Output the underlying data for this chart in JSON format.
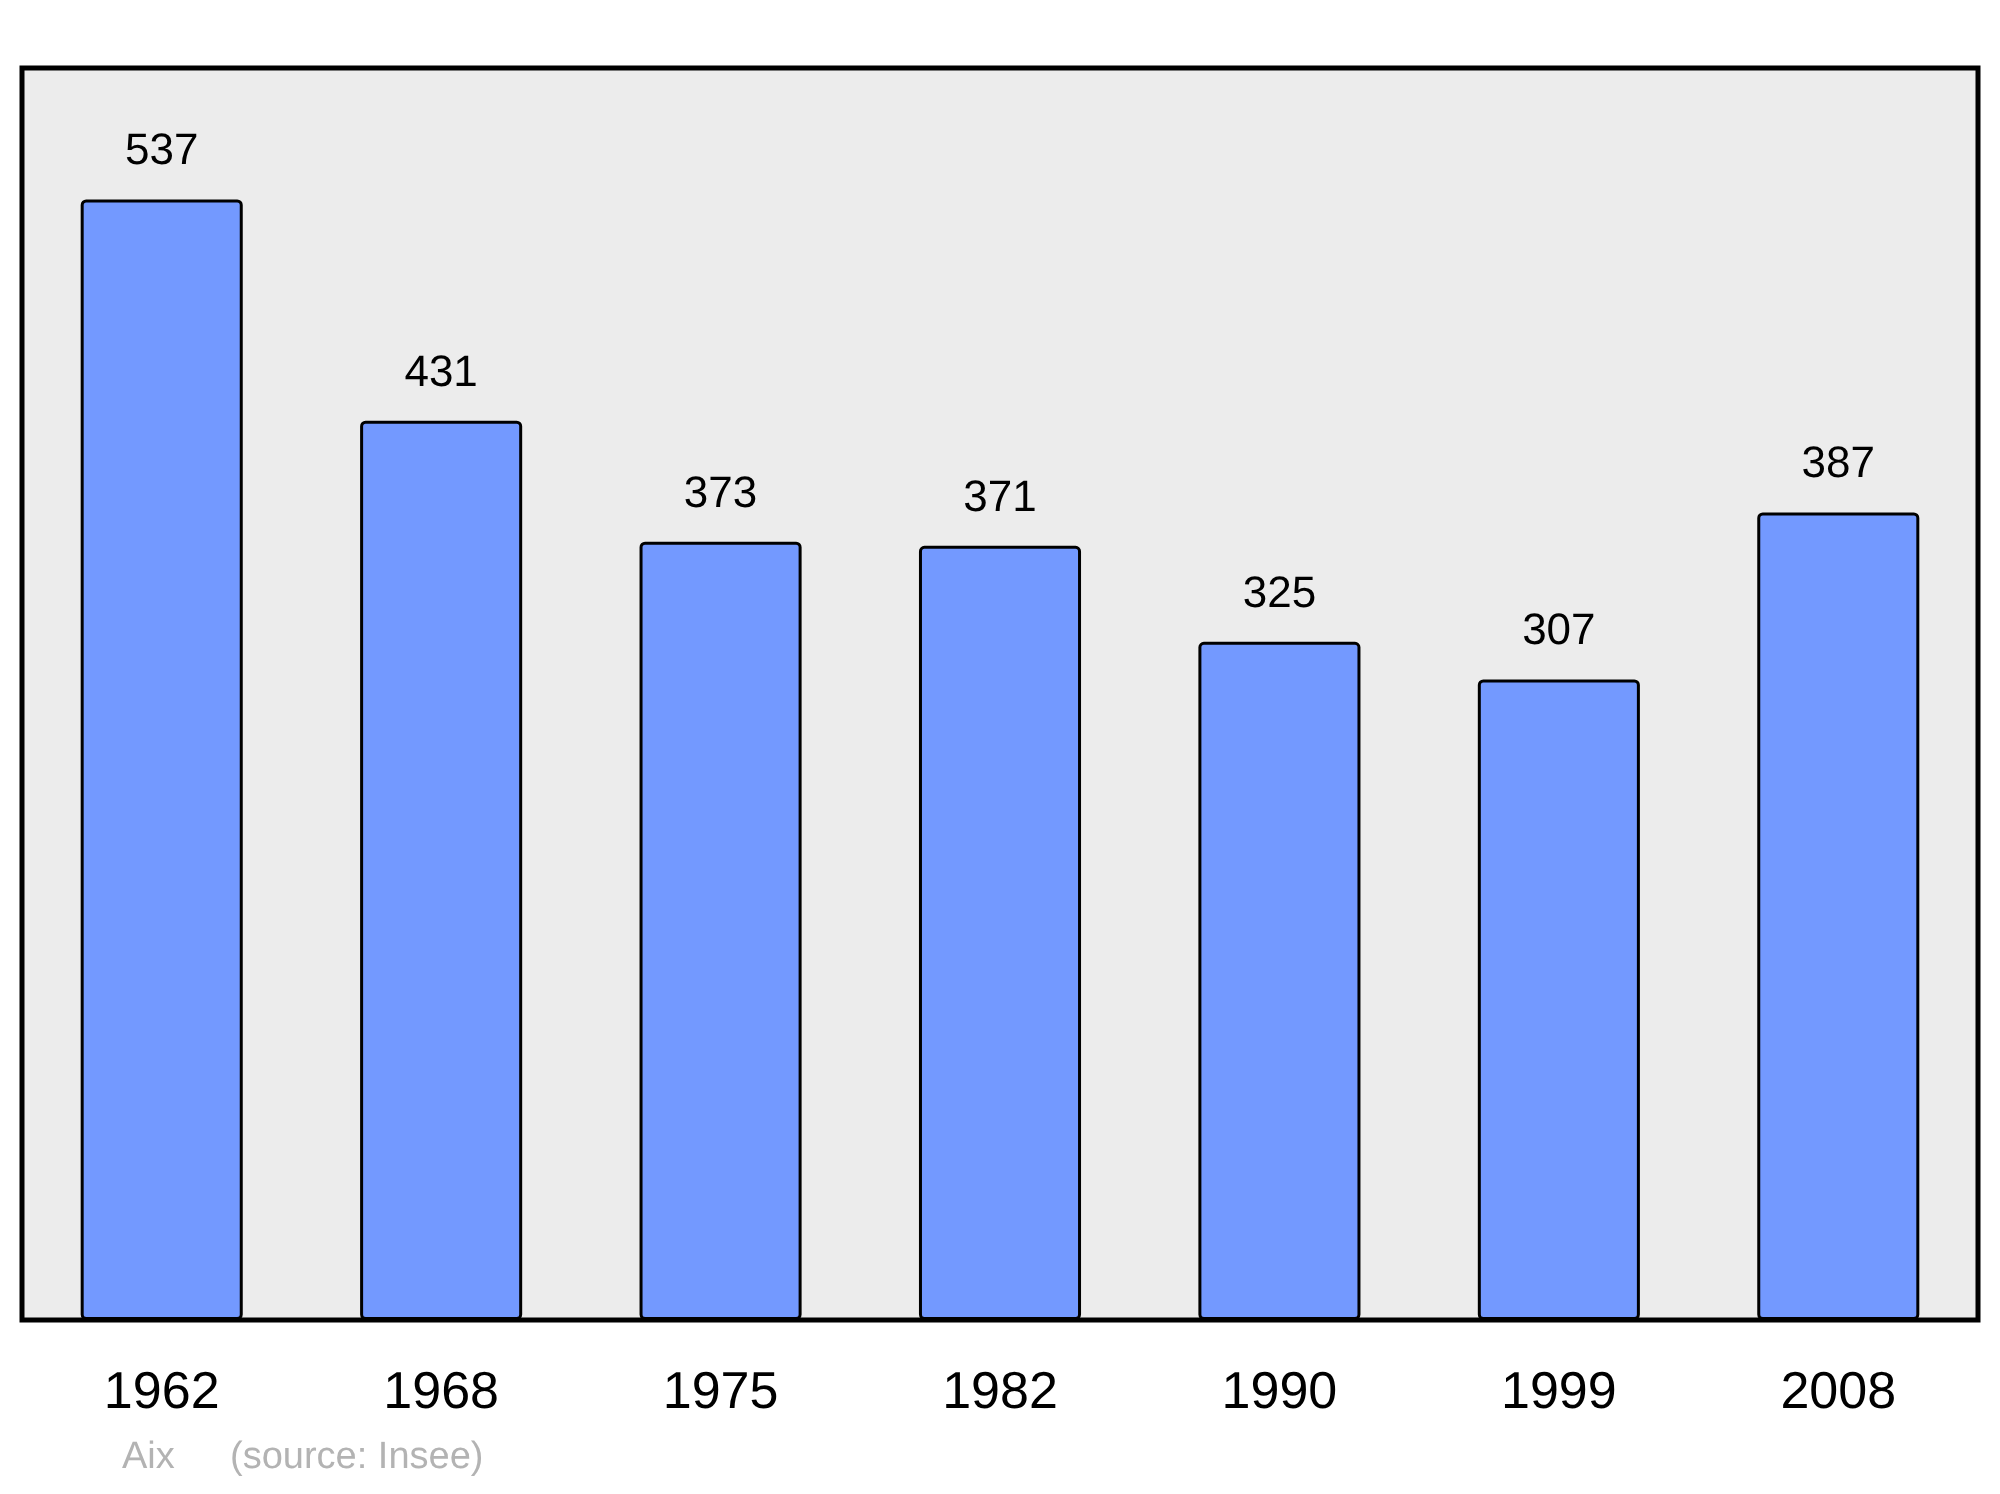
{
  "chart_data": {
    "type": "bar",
    "categories": [
      "1962",
      "1968",
      "1975",
      "1982",
      "1990",
      "1999",
      "2008"
    ],
    "values": [
      537,
      431,
      373,
      371,
      325,
      307,
      387
    ],
    "color": "#7399ff",
    "data_labels": true,
    "annotations": [
      "Aix",
      "(source: Insee)"
    ]
  }
}
